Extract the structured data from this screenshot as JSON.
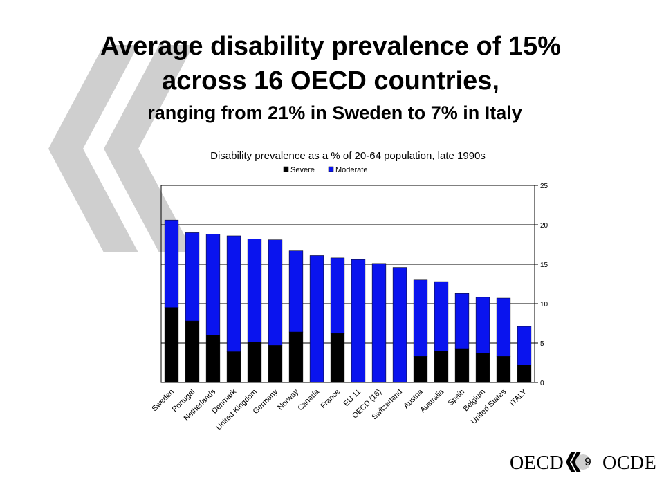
{
  "slide": {
    "title_line1": "Average disability prevalence of 15%",
    "title_line2": "across 16 OECD countries,",
    "subtitle": "ranging from 21% in Sweden to 7% in Italy",
    "footer_left": "OECD",
    "footer_right": "OCDE",
    "page_number": "9"
  },
  "colors": {
    "severe": "#000000",
    "moderate": "#0a14ee",
    "chevron": "#cfcfcf",
    "logo_mark": "#000000"
  },
  "chart_data": {
    "type": "bar",
    "stacked": true,
    "title": "Disability prevalence as a % of 20-64 population, late 1990s",
    "categories": [
      "Sweden",
      "Portugal",
      "Netherlands",
      "Denmark",
      "United Kingdom",
      "Germany",
      "Norway",
      "Canada",
      "France",
      "EU 11",
      "OECD (16)",
      "Switzerland",
      "Austria",
      "Australia",
      "Spain",
      "Belgium",
      "United States",
      "ITALY"
    ],
    "series": [
      {
        "name": "Severe",
        "values": [
          9.5,
          7.8,
          6.0,
          3.9,
          5.1,
          4.7,
          6.4,
          0,
          6.2,
          0,
          0,
          0,
          3.3,
          4.0,
          4.3,
          3.7,
          3.3,
          2.2
        ]
      },
      {
        "name": "Moderate",
        "values": [
          11.1,
          11.2,
          12.8,
          14.7,
          13.1,
          13.4,
          10.3,
          16.1,
          9.6,
          15.6,
          15.1,
          14.6,
          9.7,
          8.8,
          7.0,
          7.1,
          7.4,
          4.9
        ]
      }
    ],
    "totals": [
      20.6,
      19.0,
      18.8,
      18.6,
      18.2,
      18.1,
      16.7,
      16.1,
      15.8,
      15.6,
      15.1,
      14.6,
      13.0,
      12.8,
      11.3,
      10.8,
      10.7,
      7.1
    ],
    "ylim": [
      0,
      25
    ],
    "yticks": [
      0,
      5,
      10,
      15,
      20,
      25
    ],
    "y_axis_side": "right",
    "grid": true,
    "legend": "top",
    "xlabel": "",
    "ylabel": ""
  }
}
